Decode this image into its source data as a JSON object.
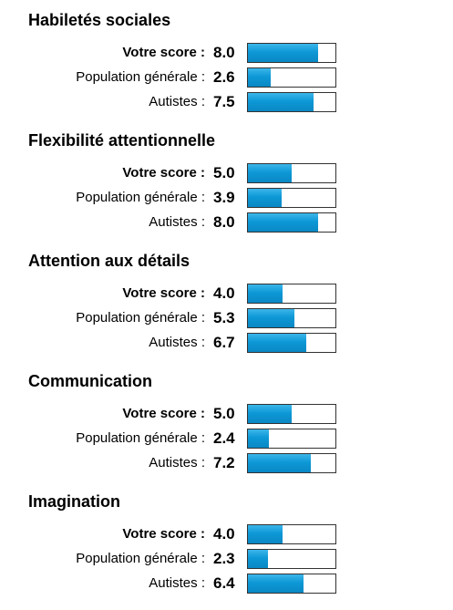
{
  "score_max": 10,
  "colors": {
    "bar_fill": "#0d98d6",
    "bar_border": "#333333"
  },
  "sections": [
    {
      "title": "Habiletés sociales",
      "rows": [
        {
          "label": "Votre score :",
          "score": "8.0",
          "value": 8.0,
          "bold": true
        },
        {
          "label": "Population générale :",
          "score": "2.6",
          "value": 2.6,
          "bold": false
        },
        {
          "label": "Autistes :",
          "score": "7.5",
          "value": 7.5,
          "bold": false
        }
      ]
    },
    {
      "title": "Flexibilité attentionnelle",
      "rows": [
        {
          "label": "Votre score :",
          "score": "5.0",
          "value": 5.0,
          "bold": true
        },
        {
          "label": "Population générale :",
          "score": "3.9",
          "value": 3.9,
          "bold": false
        },
        {
          "label": "Autistes :",
          "score": "8.0",
          "value": 8.0,
          "bold": false
        }
      ]
    },
    {
      "title": "Attention aux détails",
      "rows": [
        {
          "label": "Votre score :",
          "score": "4.0",
          "value": 4.0,
          "bold": true
        },
        {
          "label": "Population générale :",
          "score": "5.3",
          "value": 5.3,
          "bold": false
        },
        {
          "label": "Autistes :",
          "score": "6.7",
          "value": 6.7,
          "bold": false
        }
      ]
    },
    {
      "title": "Communication",
      "rows": [
        {
          "label": "Votre score :",
          "score": "5.0",
          "value": 5.0,
          "bold": true
        },
        {
          "label": "Population générale :",
          "score": "2.4",
          "value": 2.4,
          "bold": false
        },
        {
          "label": "Autistes :",
          "score": "7.2",
          "value": 7.2,
          "bold": false
        }
      ]
    },
    {
      "title": "Imagination",
      "rows": [
        {
          "label": "Votre score :",
          "score": "4.0",
          "value": 4.0,
          "bold": true
        },
        {
          "label": "Population générale :",
          "score": "2.3",
          "value": 2.3,
          "bold": false
        },
        {
          "label": "Autistes :",
          "score": "6.4",
          "value": 6.4,
          "bold": false
        }
      ]
    }
  ]
}
